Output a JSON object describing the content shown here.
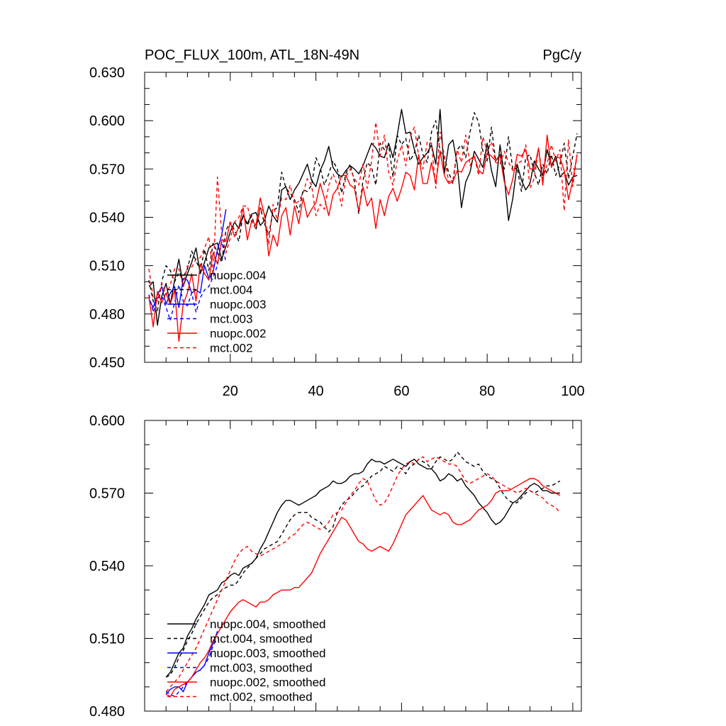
{
  "chart_data": [
    {
      "type": "line",
      "title": "POC_FLUX_100m, ATL_18N-49N",
      "units": "PgC/y",
      "xlim": [
        0,
        102
      ],
      "ylim": [
        0.45,
        0.63
      ],
      "xticks": [
        20,
        40,
        60,
        80,
        100
      ],
      "xtick_labels": [
        "20",
        "40",
        "60",
        "80",
        "100"
      ],
      "yticks": [
        0.45,
        0.48,
        0.51,
        0.54,
        0.57,
        0.6,
        0.63
      ],
      "ytick_labels": [
        "0.450",
        "0.480",
        "0.510",
        "0.540",
        "0.570",
        "0.600",
        "0.630"
      ],
      "legend_position": "lower-left",
      "series": [
        {
          "name": "nuopc.004",
          "color": "#000000",
          "dash": "solid",
          "x_start": 1,
          "values": [
            0.497,
            0.5,
            0.473,
            0.491,
            0.499,
            0.486,
            0.501,
            0.514,
            0.497,
            0.505,
            0.512,
            0.521,
            0.505,
            0.512,
            0.521,
            0.523,
            0.524,
            0.514,
            0.522,
            0.531,
            0.537,
            0.533,
            0.541,
            0.536,
            0.542,
            0.543,
            0.535,
            0.538,
            0.547,
            0.541,
            0.537,
            0.557,
            0.559,
            0.551,
            0.557,
            0.561,
            0.567,
            0.573,
            0.563,
            0.559,
            0.569,
            0.575,
            0.584,
            0.571,
            0.567,
            0.565,
            0.569,
            0.572,
            0.57,
            0.567,
            0.572,
            0.579,
            0.586,
            0.583,
            0.578,
            0.577,
            0.586,
            0.577,
            0.591,
            0.607,
            0.592,
            0.593,
            0.582,
            0.573,
            0.577,
            0.58,
            0.585,
            0.573,
            0.607,
            0.567,
            0.585,
            0.588,
            0.573,
            0.546,
            0.562,
            0.568,
            0.581,
            0.576,
            0.571,
            0.586,
            0.569,
            0.559,
            0.585,
            0.565,
            0.538,
            0.552,
            0.573,
            0.563,
            0.557,
            0.561,
            0.575,
            0.57,
            0.566,
            0.582,
            0.572,
            0.578,
            0.565,
            0.568,
            0.56,
            0.565,
            0.566
          ]
        },
        {
          "name": "mct.004",
          "color": "#000000",
          "dash": "dashed",
          "x_start": 1,
          "values": [
            0.501,
            0.488,
            0.482,
            0.5,
            0.51,
            0.507,
            0.5,
            0.506,
            0.503,
            0.508,
            0.519,
            0.513,
            0.507,
            0.52,
            0.507,
            0.524,
            0.518,
            0.512,
            0.532,
            0.537,
            0.532,
            0.525,
            0.542,
            0.535,
            0.541,
            0.532,
            0.546,
            0.536,
            0.529,
            0.544,
            0.546,
            0.568,
            0.558,
            0.555,
            0.551,
            0.543,
            0.557,
            0.556,
            0.56,
            0.577,
            0.571,
            0.56,
            0.567,
            0.575,
            0.57,
            0.555,
            0.567,
            0.573,
            0.562,
            0.542,
            0.563,
            0.574,
            0.571,
            0.56,
            0.586,
            0.582,
            0.585,
            0.565,
            0.591,
            0.585,
            0.589,
            0.575,
            0.58,
            0.591,
            0.579,
            0.574,
            0.593,
            0.6,
            0.581,
            0.577,
            0.568,
            0.561,
            0.582,
            0.585,
            0.577,
            0.593,
            0.605,
            0.599,
            0.581,
            0.575,
            0.596,
            0.575,
            0.579,
            0.57,
            0.59,
            0.569,
            0.571,
            0.556,
            0.577,
            0.579,
            0.568,
            0.56,
            0.573,
            0.567,
            0.579,
            0.566,
            0.573,
            0.586,
            0.564,
            0.578,
            0.592
          ]
        },
        {
          "name": "nuopc.003",
          "color": "#0000ff",
          "dash": "solid",
          "x_start": 1,
          "values": [
            0.489,
            0.484,
            0.492,
            0.497,
            0.486,
            0.493,
            0.497,
            0.484,
            0.502,
            0.501,
            0.493,
            0.495,
            0.493,
            0.51,
            0.502,
            0.506,
            0.52,
            0.529,
            0.545
          ]
        },
        {
          "name": "mct.003",
          "color": "#0000ff",
          "dash": "dashed",
          "x_start": 1,
          "values": [
            0.492,
            0.481,
            0.49,
            0.491,
            0.484,
            0.476,
            0.487,
            0.498,
            0.488,
            0.485,
            0.493,
            0.481,
            0.49,
            0.495,
            0.497,
            0.503,
            0.51,
            0.525,
            0.512
          ]
        },
        {
          "name": "nuopc.002",
          "color": "#ff0000",
          "dash": "solid",
          "x_start": 1,
          "values": [
            0.491,
            0.472,
            0.494,
            0.487,
            0.493,
            0.486,
            0.495,
            0.463,
            0.486,
            0.493,
            0.505,
            0.488,
            0.511,
            0.505,
            0.501,
            0.518,
            0.511,
            0.526,
            0.525,
            0.537,
            0.528,
            0.534,
            0.546,
            0.526,
            0.538,
            0.535,
            0.552,
            0.541,
            0.516,
            0.529,
            0.522,
            0.541,
            0.546,
            0.529,
            0.547,
            0.536,
            0.552,
            0.54,
            0.545,
            0.549,
            0.561,
            0.552,
            0.541,
            0.554,
            0.558,
            0.566,
            0.566,
            0.56,
            0.558,
            0.544,
            0.559,
            0.547,
            0.552,
            0.533,
            0.551,
            0.541,
            0.553,
            0.558,
            0.55,
            0.558,
            0.568,
            0.566,
            0.557,
            0.579,
            0.561,
            0.561,
            0.574,
            0.561,
            0.581,
            0.566,
            0.561,
            0.562,
            0.569,
            0.568,
            0.574,
            0.576,
            0.578,
            0.569,
            0.567,
            0.58,
            0.578,
            0.575,
            0.578,
            0.562,
            0.554,
            0.564,
            0.579,
            0.578,
            0.582,
            0.57,
            0.57,
            0.583,
            0.56,
            0.591,
            0.571,
            0.577,
            0.577,
            0.569,
            0.551,
            0.563,
            0.579
          ]
        },
        {
          "name": "mct.002",
          "color": "#ff0000",
          "dash": "dashed",
          "x_start": 1,
          "values": [
            0.508,
            0.49,
            0.488,
            0.499,
            0.492,
            0.498,
            0.508,
            0.508,
            0.497,
            0.51,
            0.509,
            0.514,
            0.515,
            0.521,
            0.528,
            0.504,
            0.565,
            0.53,
            0.518,
            0.527,
            0.537,
            0.54,
            0.547,
            0.547,
            0.537,
            0.533,
            0.546,
            0.542,
            0.523,
            0.548,
            0.538,
            0.552,
            0.551,
            0.56,
            0.548,
            0.55,
            0.555,
            0.564,
            0.56,
            0.541,
            0.548,
            0.545,
            0.56,
            0.567,
            0.56,
            0.547,
            0.565,
            0.57,
            0.564,
            0.56,
            0.573,
            0.558,
            0.575,
            0.599,
            0.578,
            0.591,
            0.568,
            0.56,
            0.575,
            0.585,
            0.572,
            0.59,
            0.596,
            0.578,
            0.57,
            0.587,
            0.586,
            0.558,
            0.593,
            0.578,
            0.562,
            0.563,
            0.582,
            0.574,
            0.591,
            0.572,
            0.578,
            0.566,
            0.59,
            0.581,
            0.587,
            0.574,
            0.573,
            0.581,
            0.574,
            0.569,
            0.573,
            0.575,
            0.585,
            0.558,
            0.564,
            0.583,
            0.564,
            0.573,
            0.585,
            0.575,
            0.582,
            0.544,
            0.588,
            0.559,
            0.579
          ]
        }
      ]
    },
    {
      "type": "line",
      "title": "",
      "xlim": [
        0,
        102
      ],
      "ylim": [
        0.48,
        0.6
      ],
      "xticks": [
        20,
        40,
        60,
        80,
        100
      ],
      "yticks": [
        0.48,
        0.51,
        0.54,
        0.57,
        0.6
      ],
      "ytick_labels": [
        "0.480",
        "0.510",
        "0.540",
        "0.570",
        "0.600"
      ],
      "legend_position": "lower-left",
      "series": [
        {
          "name": "nuopc.004, smoothed",
          "color": "#000000",
          "dash": "solid",
          "x_start": 5,
          "values": [
            0.494,
            0.496,
            0.5,
            0.504,
            0.506,
            0.511,
            0.514,
            0.518,
            0.521,
            0.524,
            0.528,
            0.529,
            0.53,
            0.533,
            0.534,
            0.536,
            0.537,
            0.536,
            0.539,
            0.54,
            0.541,
            0.543,
            0.547,
            0.55,
            0.554,
            0.558,
            0.562,
            0.565,
            0.567,
            0.567,
            0.566,
            0.565,
            0.566,
            0.567,
            0.568,
            0.569,
            0.571,
            0.572,
            0.573,
            0.575,
            0.574,
            0.574,
            0.575,
            0.577,
            0.578,
            0.578,
            0.579,
            0.582,
            0.584,
            0.583,
            0.583,
            0.582,
            0.583,
            0.584,
            0.583,
            0.582,
            0.581,
            0.583,
            0.584,
            0.582,
            0.581,
            0.58,
            0.58,
            0.578,
            0.575,
            0.576,
            0.578,
            0.577,
            0.575,
            0.576,
            0.573,
            0.571,
            0.569,
            0.566,
            0.564,
            0.562,
            0.559,
            0.557,
            0.558,
            0.56,
            0.563,
            0.566,
            0.567,
            0.569,
            0.571,
            0.573,
            0.574,
            0.573,
            0.571,
            0.571,
            0.57,
            0.57,
            0.57
          ]
        },
        {
          "name": "mct.004, smoothed",
          "color": "#000000",
          "dash": "dashed",
          "x_start": 5,
          "values": [
            0.494,
            0.495,
            0.498,
            0.502,
            0.505,
            0.509,
            0.512,
            0.516,
            0.519,
            0.522,
            0.525,
            0.527,
            0.528,
            0.53,
            0.531,
            0.532,
            0.532,
            0.534,
            0.537,
            0.539,
            0.541,
            0.543,
            0.545,
            0.547,
            0.548,
            0.549,
            0.55,
            0.553,
            0.556,
            0.559,
            0.561,
            0.562,
            0.562,
            0.562,
            0.56,
            0.559,
            0.558,
            0.556,
            0.554,
            0.556,
            0.562,
            0.565,
            0.567,
            0.568,
            0.57,
            0.572,
            0.573,
            0.575,
            0.577,
            0.578,
            0.579,
            0.581,
            0.58,
            0.579,
            0.581,
            0.58,
            0.578,
            0.581,
            0.582,
            0.584,
            0.583,
            0.582,
            0.58,
            0.583,
            0.585,
            0.584,
            0.583,
            0.584,
            0.587,
            0.585,
            0.583,
            0.582,
            0.581,
            0.582,
            0.579,
            0.577,
            0.576,
            0.575,
            0.572,
            0.569,
            0.567,
            0.566,
            0.566,
            0.568,
            0.57,
            0.571,
            0.57,
            0.571,
            0.572,
            0.573,
            0.573,
            0.574,
            0.575
          ]
        },
        {
          "name": "nuopc.003, smoothed",
          "color": "#0000ff",
          "dash": "solid",
          "x_start": 5,
          "values": [
            0.487,
            0.489,
            0.49,
            0.49,
            0.488,
            0.492,
            0.494,
            0.496,
            0.497,
            0.499,
            0.504,
            0.508,
            0.513
          ]
        },
        {
          "name": "mct.003, smoothed",
          "color": "#0000ff",
          "dash": "dashed",
          "x_start": 5,
          "values": [
            0.488,
            0.487,
            0.486,
            0.488,
            0.49,
            0.492,
            0.494,
            0.496,
            0.497,
            0.499,
            0.502,
            0.507,
            0.51
          ]
        },
        {
          "name": "nuopc.002, smoothed",
          "color": "#ff0000",
          "dash": "solid",
          "x_start": 5,
          "values": [
            0.487,
            0.486,
            0.489,
            0.49,
            0.491,
            0.492,
            0.494,
            0.497,
            0.5,
            0.502,
            0.505,
            0.509,
            0.512,
            0.515,
            0.518,
            0.521,
            0.523,
            0.525,
            0.526,
            0.525,
            0.524,
            0.523,
            0.525,
            0.525,
            0.526,
            0.528,
            0.529,
            0.53,
            0.53,
            0.53,
            0.531,
            0.531,
            0.533,
            0.535,
            0.537,
            0.541,
            0.545,
            0.548,
            0.551,
            0.554,
            0.557,
            0.56,
            0.559,
            0.556,
            0.553,
            0.55,
            0.549,
            0.547,
            0.546,
            0.547,
            0.548,
            0.547,
            0.546,
            0.549,
            0.553,
            0.557,
            0.561,
            0.563,
            0.565,
            0.567,
            0.569,
            0.566,
            0.563,
            0.562,
            0.561,
            0.562,
            0.561,
            0.558,
            0.557,
            0.557,
            0.558,
            0.559,
            0.561,
            0.563,
            0.564,
            0.565,
            0.567,
            0.57,
            0.571,
            0.571,
            0.571,
            0.572,
            0.573,
            0.574,
            0.575,
            0.576,
            0.576,
            0.575,
            0.573,
            0.572,
            0.571,
            0.57,
            0.569
          ]
        },
        {
          "name": "mct.002, smoothed",
          "color": "#ff0000",
          "dash": "dashed",
          "x_start": 5,
          "values": [
            0.488,
            0.49,
            0.492,
            0.494,
            0.497,
            0.5,
            0.503,
            0.506,
            0.51,
            0.514,
            0.518,
            0.522,
            0.526,
            0.53,
            0.534,
            0.538,
            0.542,
            0.545,
            0.547,
            0.548,
            0.546,
            0.545,
            0.544,
            0.545,
            0.546,
            0.547,
            0.548,
            0.549,
            0.55,
            0.552,
            0.553,
            0.555,
            0.557,
            0.558,
            0.557,
            0.556,
            0.555,
            0.556,
            0.558,
            0.561,
            0.562,
            0.563,
            0.566,
            0.569,
            0.571,
            0.574,
            0.576,
            0.575,
            0.571,
            0.567,
            0.565,
            0.566,
            0.569,
            0.573,
            0.577,
            0.58,
            0.582,
            0.583,
            0.582,
            0.584,
            0.585,
            0.583,
            0.584,
            0.585,
            0.584,
            0.583,
            0.582,
            0.582,
            0.581,
            0.578,
            0.575,
            0.574,
            0.575,
            0.576,
            0.577,
            0.578,
            0.577,
            0.575,
            0.574,
            0.573,
            0.572,
            0.571,
            0.57,
            0.571,
            0.572,
            0.571,
            0.57,
            0.569,
            0.568,
            0.566,
            0.565,
            0.564,
            0.562
          ]
        }
      ]
    }
  ]
}
